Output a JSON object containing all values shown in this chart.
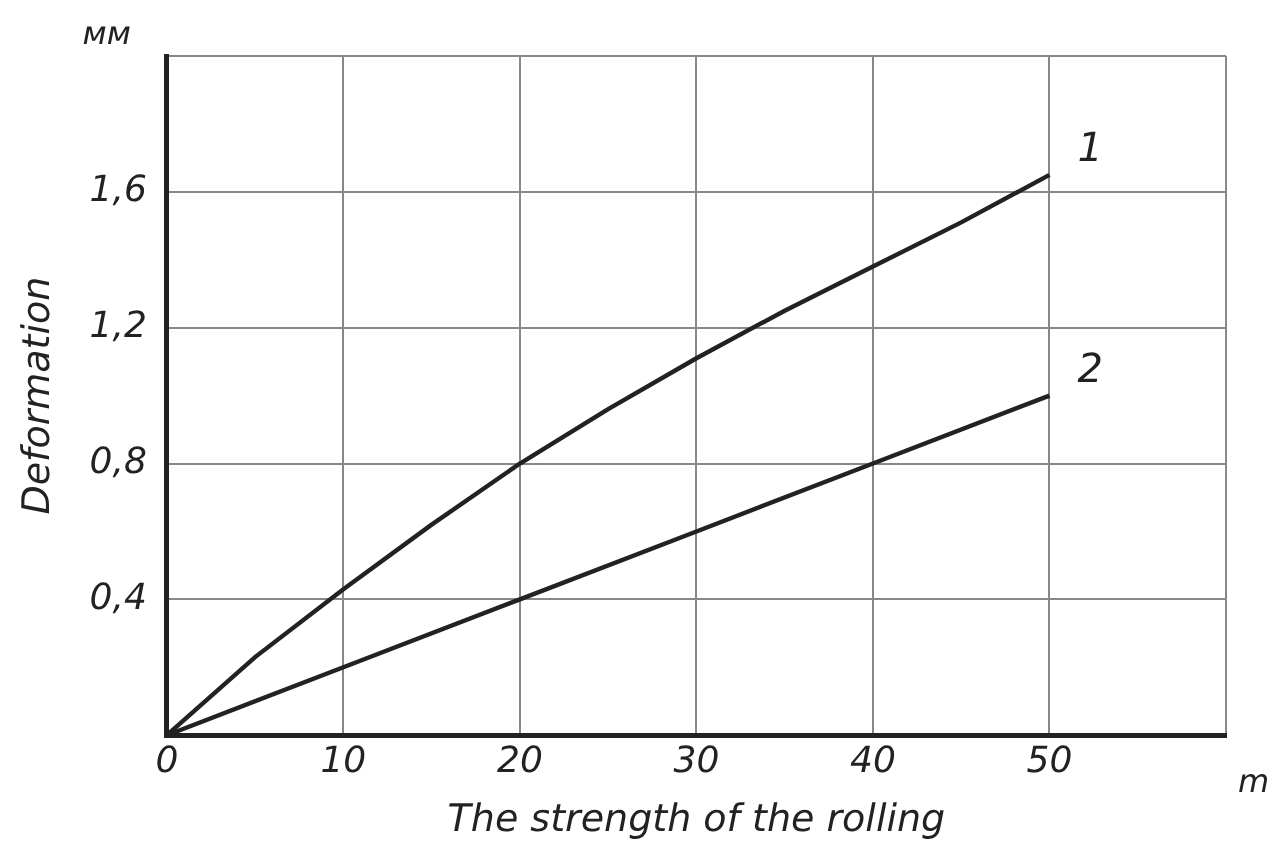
{
  "chart_data": {
    "type": "line",
    "xlabel": "The strength of the rolling",
    "ylabel": "Deformation",
    "annotations": [
      "мм",
      "m"
    ],
    "xlim": [
      0,
      60
    ],
    "xticks": [
      0,
      10,
      20,
      30,
      40,
      50,
      {
        "value": 60,
        "label": null
      }
    ],
    "ylim": [
      0,
      2
    ],
    "yticks": [
      {
        "value": 0,
        "label": null
      },
      {
        "value": 0.4,
        "label": "0,4"
      },
      {
        "value": 0.8,
        "label": "0,8"
      },
      {
        "value": 1.2,
        "label": "1,2"
      },
      {
        "value": 1.6,
        "label": "1,6"
      },
      {
        "value": 2,
        "label": null
      }
    ],
    "grid": true,
    "legend": false,
    "marker": "none",
    "line_style": "solid",
    "series": [
      {
        "name": "1",
        "color": "#222222",
        "x": [
          0,
          5,
          10,
          15,
          20,
          25,
          30,
          35,
          40,
          45,
          50
        ],
        "values": [
          0,
          0.23,
          0.43,
          0.62,
          0.8,
          0.96,
          1.11,
          1.25,
          1.38,
          1.51,
          1.65
        ]
      },
      {
        "name": "2",
        "color": "#222222",
        "x": [
          0,
          10,
          20,
          30,
          40,
          50
        ],
        "values": [
          0,
          0.2,
          0.4,
          0.6,
          0.8,
          1.0
        ]
      }
    ]
  }
}
